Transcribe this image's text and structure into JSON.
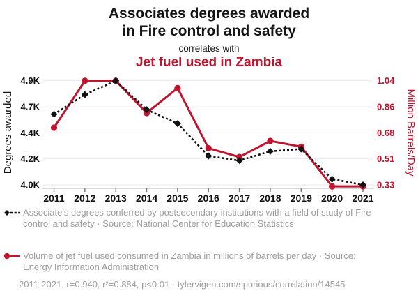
{
  "header": {
    "title_line1": "Associates degrees awarded",
    "title_line2": "in Fire control and safety",
    "subtitle": "correlates with",
    "red_title": "Jet fuel used in Zambia"
  },
  "chart_data": {
    "type": "line",
    "x_labels": [
      "2011",
      "2012",
      "2013",
      "2014",
      "2015",
      "2016",
      "2017",
      "2018",
      "2019",
      "2020",
      "2021"
    ],
    "left_axis": {
      "label": "Degrees awarded",
      "tick_labels_top_to_bottom": [
        "4.9K",
        "4.7K",
        "4.4K",
        "4.2K",
        "4.0K"
      ],
      "domain_min": 3990,
      "domain_max": 4890
    },
    "right_axis": {
      "label": "Million Barrels/Day",
      "tick_labels_top_to_bottom": [
        "1.04",
        "0.86",
        "0.68",
        "0.51",
        "0.33"
      ],
      "domain_min": 0.33,
      "domain_max": 1.04
    },
    "series": [
      {
        "name": "Jet fuel used in Zambia",
        "axis": "right",
        "color": "#C0152F",
        "line_style": "solid",
        "marker": "circle",
        "values": [
          0.72,
          1.04,
          1.04,
          0.82,
          0.99,
          0.58,
          0.52,
          0.63,
          0.59,
          0.32,
          0.32
        ]
      },
      {
        "name": "Associates degrees awarded in Fire control and safety",
        "axis": "left",
        "color": "#111111",
        "line_style": "dashed",
        "marker": "diamond",
        "values": [
          4600,
          4770,
          4890,
          4640,
          4520,
          4240,
          4200,
          4280,
          4300,
          4040,
          3990
        ]
      }
    ],
    "grid": "horizontal"
  },
  "legend": [
    {
      "marker": "black-diamond-dashed-line",
      "text": "Associate's degrees conferred by postsecondary institutions with a field of study of Fire control and safety · Source: National Center for Education Statistics"
    },
    {
      "marker": "red-circle-solid-line",
      "text": "Volume of jet fuel used consumed in Zambia in millions of barrels per day · Source: Energy Information Administration"
    }
  ],
  "footer": {
    "text": "2011-2021, r=0.940, r²=0.884, p<0.01 · tylervigen.com/spurious/correlation/14545"
  },
  "colors": {
    "accent_red": "#C0152F",
    "series_black": "#111111",
    "text_gray": "#9d9d9d",
    "grid_line": "#f0f0f0",
    "axis_line": "#b0b0b0",
    "tick_mark": "#777777"
  }
}
